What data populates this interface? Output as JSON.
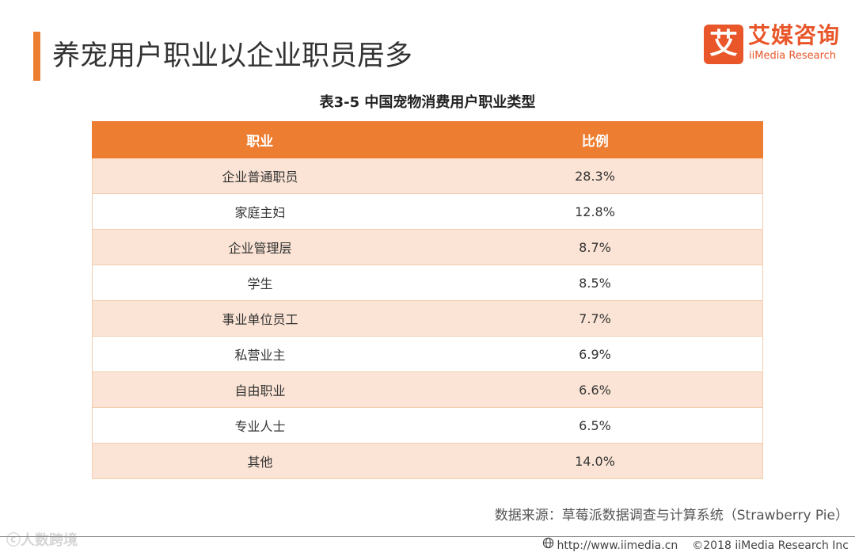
{
  "header": {
    "title": "养宠用户职业以企业职员居多"
  },
  "logo": {
    "mark": "艾",
    "name_cn": "艾媒咨询",
    "name_en": "iiMedia Research"
  },
  "chart_data": {
    "type": "table",
    "title": "表3-5 中国宠物消费用户职业类型",
    "columns": [
      "职业",
      "比例"
    ],
    "rows": [
      [
        "企业普通职员",
        "28.3%"
      ],
      [
        "家庭主妇",
        "12.8%"
      ],
      [
        "企业管理层",
        "8.7%"
      ],
      [
        "学生",
        "8.5%"
      ],
      [
        "事业单位员工",
        "7.7%"
      ],
      [
        "私营业主",
        "6.9%"
      ],
      [
        "自由职业",
        "6.6%"
      ],
      [
        "专业人士",
        "6.5%"
      ],
      [
        "其他",
        "14.0%"
      ]
    ],
    "header_color": "#ed7d31",
    "stripe_color": "#fbe4d5"
  },
  "source": "数据来源：草莓派数据调查与计算系统（Strawberry Pie）",
  "footer": {
    "url": "http://www.iimedia.cn",
    "copyright": "©2018  iiMedia Research  Inc",
    "watermark": "人数跨境"
  },
  "colors": {
    "accent": "#ed7d31",
    "brand": "#e8562a"
  },
  "icons": {
    "globe": "globe-icon",
    "weibo": "weibo-icon"
  }
}
